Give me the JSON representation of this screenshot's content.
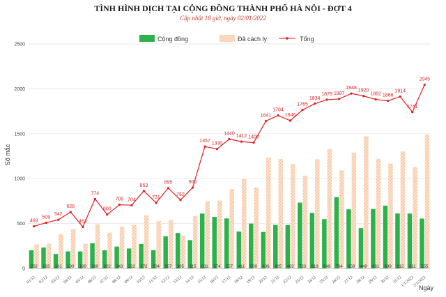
{
  "chart_data": {
    "type": "bar",
    "title": "TÌNH HÌNH DỊCH TẠI CỘNG ĐỒNG THÀNH PHỐ HÀ NỘI - ĐỢT 4",
    "subtitle": "Cập nhật 18 giờ, ngày 02/01/2022",
    "ylabel": "Số mắc",
    "xlabel": "Ngày",
    "ylim": [
      0,
      2500
    ],
    "yticks": [
      0,
      500,
      1000,
      1500,
      2000,
      2500
    ],
    "grid": true,
    "legend_position": "top",
    "categories": [
      "01/12",
      "02/12",
      "03/12",
      "04/12",
      "05/12",
      "06/12",
      "07/12",
      "08/12",
      "09/12",
      "10/12",
      "11/12",
      "12/12",
      "13/12",
      "14/12",
      "15/12",
      "16/12",
      "17/12",
      "18/12",
      "19/12",
      "20/12",
      "21/12",
      "22/12",
      "23/12",
      "24/12",
      "25/12",
      "26/12",
      "27/12",
      "28/12",
      "29/12",
      "30/12",
      "31/12",
      "1/1/2022",
      "2/1/2022"
    ],
    "series": [
      {
        "name": "Cộng đồng",
        "kind": "bar",
        "color": "#2db24a",
        "values": [
          202,
          233,
          161,
          190,
          189,
          280,
          202,
          243,
          222,
          272,
          204,
          357,
          395,
          315,
          611,
          574,
          557,
          411,
          500,
          406,
          485,
          483,
          733,
          618,
          549,
          794,
          658,
          449,
          661,
          699,
          612,
          611,
          555
        ]
      },
      {
        "name": "Đã cách ly",
        "kind": "bar-hatched",
        "color": "#f4b183",
        "values": [
          267,
          276,
          381,
          438,
          274,
          494,
          398,
          466,
          482,
          591,
          527,
          538,
          367,
          585,
          746,
          756,
          883,
          1001,
          900,
          1235,
          1219,
          1163,
          1032,
          1216,
          1330,
          1093,
          1290,
          1471,
          1221,
          1167,
          1302,
          1130,
          1490
        ]
      },
      {
        "name": "Tổng",
        "kind": "line",
        "color": "#e31a1c",
        "values": [
          469,
          509,
          542,
          628,
          463,
          774,
          600,
          709,
          704,
          863,
          731,
          895,
          762,
          900,
          1357,
          1330,
          1440,
          1412,
          1400,
          1641,
          1704,
          1646,
          1765,
          1834,
          1879,
          1887,
          1948,
          1920,
          1882,
          1866,
          1914,
          1741,
          2045
        ]
      }
    ]
  }
}
